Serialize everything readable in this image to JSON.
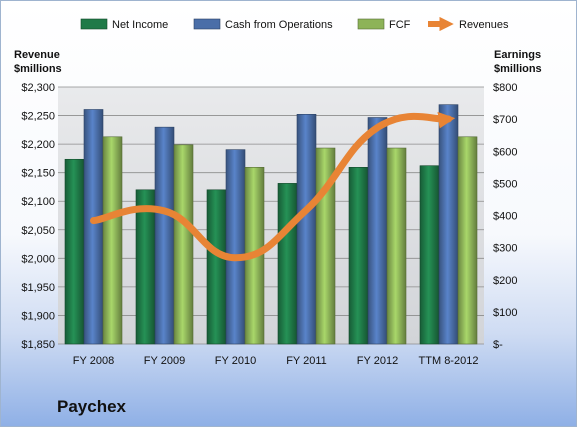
{
  "company": "Paychex",
  "chart_data": {
    "type": "bar",
    "categories": [
      "FY 2008",
      "FY 2009",
      "FY 2010",
      "FY 2011",
      "FY 2012",
      "TTM 8-2012"
    ],
    "left_axis": {
      "title_lines": [
        "Revenue",
        "$millions"
      ],
      "ylim": [
        1850,
        2300
      ],
      "ticks": [
        1850,
        1900,
        1950,
        2000,
        2050,
        2100,
        2150,
        2200,
        2250,
        2300
      ],
      "tick_labels": [
        "$1,850",
        "$1,900",
        "$1,950",
        "$2,000",
        "$2,050",
        "$2,100",
        "$2,150",
        "$2,200",
        "$2,250",
        "$2,300"
      ]
    },
    "right_axis": {
      "title_lines": [
        "Earnings",
        "$millions"
      ],
      "ylim": [
        0,
        800
      ],
      "ticks": [
        0,
        100,
        200,
        300,
        400,
        500,
        600,
        700,
        800
      ],
      "tick_labels": [
        "$-",
        "$100",
        "$200",
        "$300",
        "$400",
        "$500",
        "$600",
        "$700",
        "$800"
      ]
    },
    "bar_series": [
      {
        "name": "Net Income",
        "axis": "right",
        "color": "#1f7a48",
        "values": [
          575,
          480,
          480,
          500,
          550,
          555
        ]
      },
      {
        "name": "Cash from Operations",
        "axis": "right",
        "color": "#4a6ea8",
        "values": [
          730,
          675,
          605,
          715,
          705,
          745
        ]
      },
      {
        "name": "FCF",
        "axis": "right",
        "color": "#8db358",
        "values": [
          645,
          620,
          550,
          610,
          610,
          645
        ]
      }
    ],
    "line_series": [
      {
        "name": "Revenues",
        "axis": "left",
        "color": "#e88435",
        "values": [
          2066,
          2083,
          2001,
          2085,
          2229,
          2244
        ]
      }
    ],
    "grid": true,
    "legend_position": "top"
  }
}
